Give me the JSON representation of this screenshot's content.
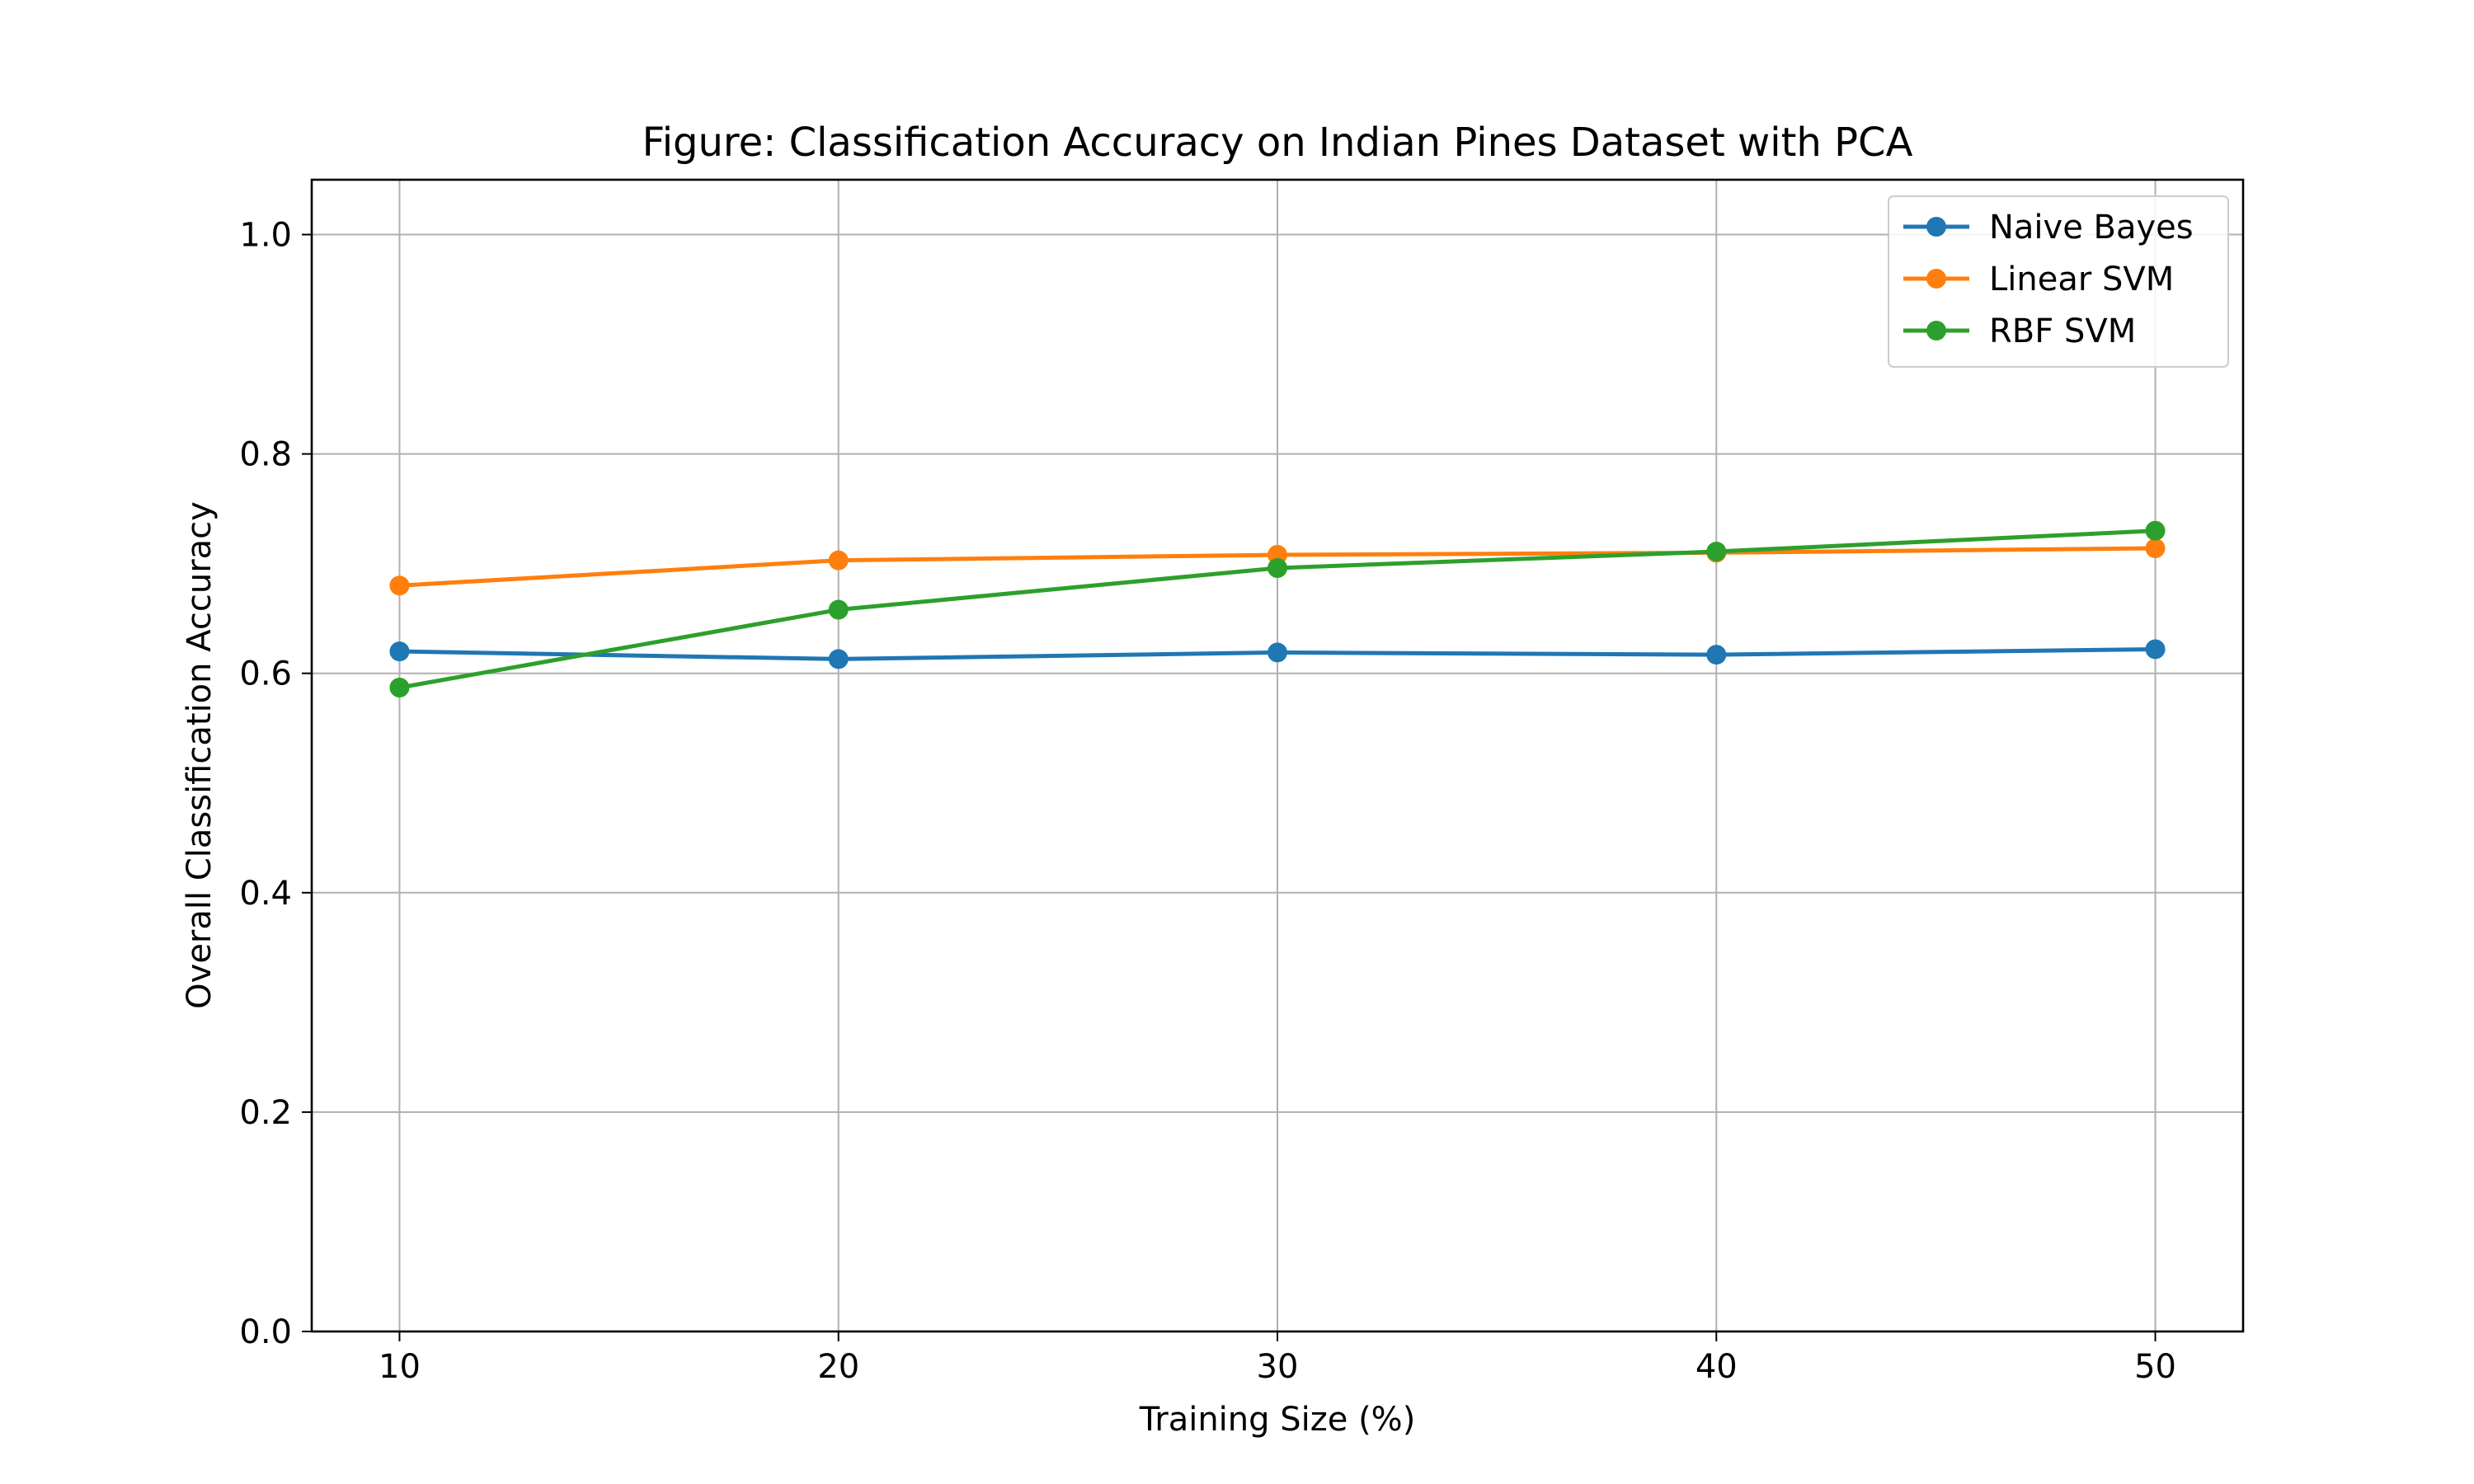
{
  "chart_data": {
    "type": "line",
    "title": "Figure: Classification Accuracy on Indian Pines Dataset with PCA",
    "xlabel": "Training Size (%)",
    "ylabel": "Overall Classification Accuracy",
    "x": [
      10,
      20,
      30,
      40,
      50
    ],
    "xticks": [
      "10",
      "20",
      "30",
      "40",
      "50"
    ],
    "yticks": [
      "0.0",
      "0.2",
      "0.4",
      "0.6",
      "0.8",
      "1.0"
    ],
    "xlim": [
      8,
      52
    ],
    "ylim": [
      0,
      1.05
    ],
    "grid": true,
    "legend_position": "top-right",
    "series": [
      {
        "name": "Naive Bayes",
        "color": "#1f77b4",
        "values": [
          0.62,
          0.613,
          0.619,
          0.617,
          0.622
        ]
      },
      {
        "name": "Linear SVM",
        "color": "#ff7f0e",
        "values": [
          0.68,
          0.703,
          0.708,
          0.71,
          0.714
        ]
      },
      {
        "name": "RBF SVM",
        "color": "#2ca02c",
        "values": [
          0.587,
          0.658,
          0.696,
          0.711,
          0.73
        ]
      }
    ]
  }
}
